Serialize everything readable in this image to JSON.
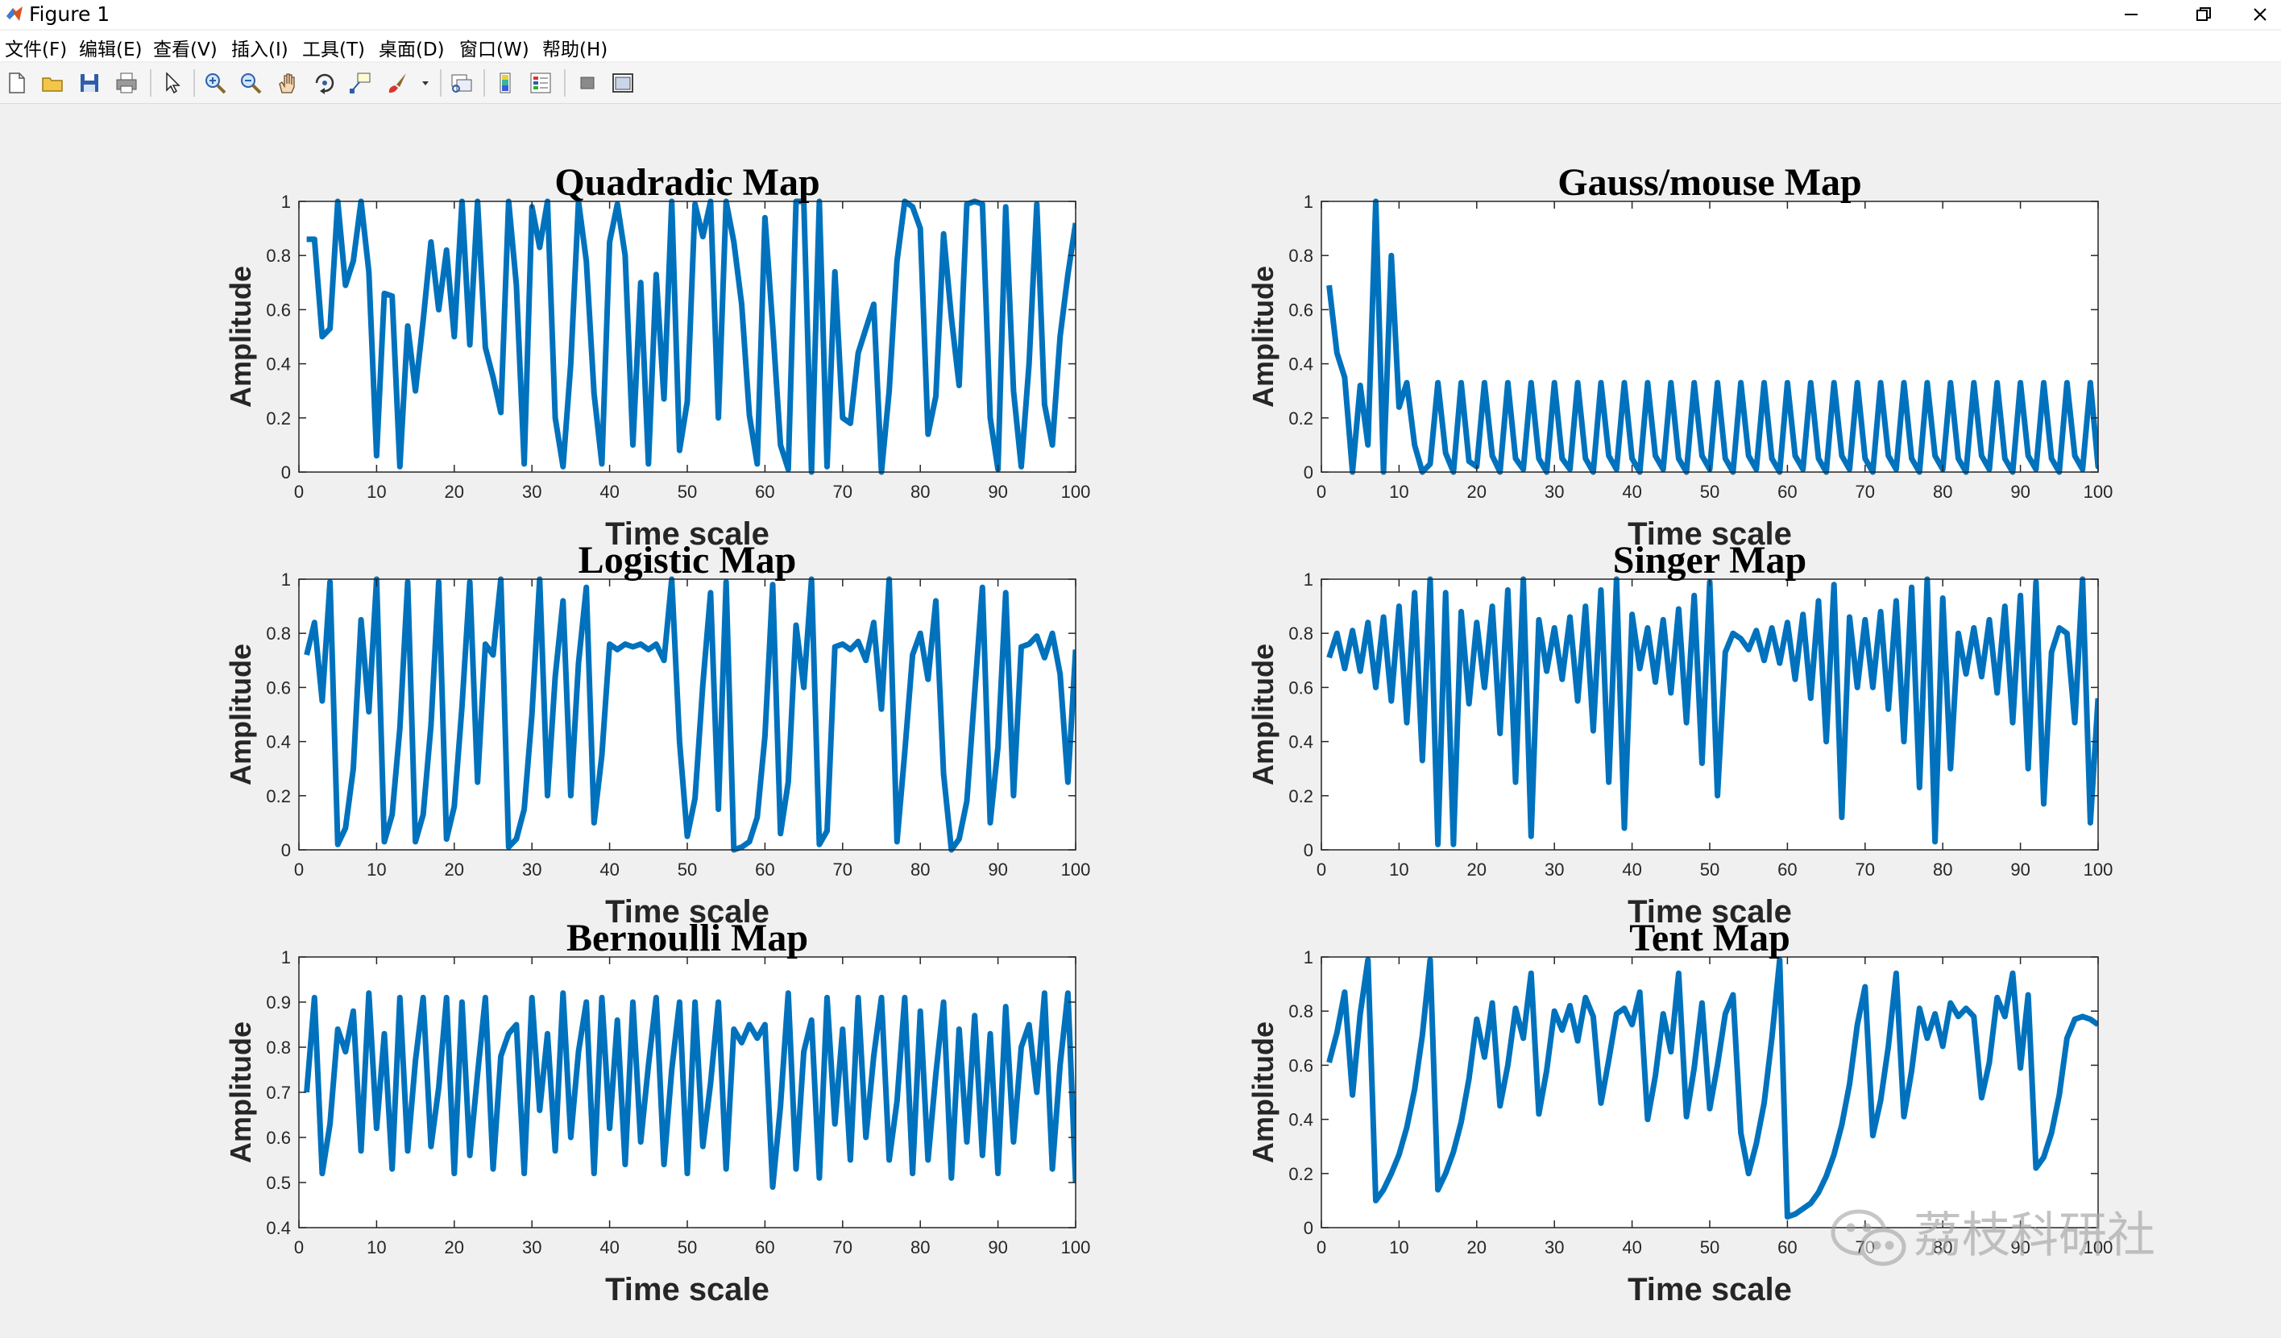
{
  "window": {
    "title": "Figure 1",
    "controls": [
      "minimize",
      "restore",
      "close"
    ]
  },
  "menu": [
    {
      "label": "文件(F)"
    },
    {
      "label": "编辑(E)"
    },
    {
      "label": "查看(V)"
    },
    {
      "label": "插入(I)"
    },
    {
      "label": "工具(T)"
    },
    {
      "label": "桌面(D)"
    },
    {
      "label": "窗口(W)"
    },
    {
      "label": "帮助(H)"
    }
  ],
  "toolbar": [
    "new-figure-icon",
    "open-file-icon",
    "save-icon",
    "print-icon",
    "select-pointer-icon",
    "zoom-in-icon",
    "zoom-out-icon",
    "pan-hand-icon",
    "rotate-3d-icon",
    "data-cursor-icon",
    "brush-icon",
    "brush-dropdown-icon",
    "link-plot-icon",
    "colorbar-icon",
    "legend-icon",
    "hide-plot-tools-icon",
    "show-plot-tools-icon"
  ],
  "colors": {
    "line": "#0072BD",
    "axes_background": "#ffffff",
    "figure_background": "#f0f0f0",
    "axis_text": "#262626"
  },
  "watermark": {
    "text": "荔枝科研社"
  },
  "chart_data": [
    {
      "type": "line",
      "title": "Quadradic Map",
      "xlabel": "Time scale",
      "ylabel": "Amplitude",
      "xlim": [
        0,
        100
      ],
      "ylim": [
        0,
        1
      ],
      "xticks": [
        "0",
        "10",
        "20",
        "30",
        "40",
        "50",
        "60",
        "70",
        "80",
        "90",
        "100"
      ],
      "yticks": [
        "0",
        "0.2",
        "0.4",
        "0.6",
        "0.8",
        "1"
      ],
      "grid": false,
      "series": [
        {
          "x_start": 1,
          "x_step": 1,
          "values": [
            0.86,
            0.86,
            0.5,
            0.53,
            1.0,
            0.69,
            0.78,
            1.0,
            0.74,
            0.06,
            0.66,
            0.65,
            0.02,
            0.54,
            0.3,
            0.56,
            0.85,
            0.6,
            0.82,
            0.5,
            1.0,
            0.47,
            1.0,
            0.46,
            0.35,
            0.22,
            1.0,
            0.69,
            0.03,
            0.98,
            0.83,
            1.0,
            0.2,
            0.02,
            0.4,
            1.0,
            0.78,
            0.29,
            0.03,
            0.85,
            0.99,
            0.8,
            0.1,
            0.7,
            0.03,
            0.73,
            0.27,
            1.0,
            0.08,
            0.26,
            0.99,
            0.87,
            1.0,
            0.2,
            1.0,
            0.85,
            0.62,
            0.21,
            0.03,
            0.94,
            0.54,
            0.1,
            0.01,
            1.0,
            1.0,
            0.0,
            1.0,
            0.02,
            0.74,
            0.2,
            0.18,
            0.44,
            0.53,
            0.62,
            0.0,
            0.3,
            0.78,
            1.0,
            0.98,
            0.9,
            0.14,
            0.28,
            0.88,
            0.57,
            0.32,
            0.99,
            1.0,
            0.99,
            0.2,
            0.01,
            0.98,
            0.3,
            0.02,
            0.4,
            0.99,
            0.25,
            0.1,
            0.5,
            0.73,
            0.92
          ]
        }
      ]
    },
    {
      "type": "line",
      "title": "Gauss/mouse Map",
      "xlabel": "Time scale",
      "ylabel": "Amplitude",
      "xlim": [
        0,
        100
      ],
      "ylim": [
        0,
        1
      ],
      "xticks": [
        "0",
        "10",
        "20",
        "30",
        "40",
        "50",
        "60",
        "70",
        "80",
        "90",
        "100"
      ],
      "yticks": [
        "0",
        "0.2",
        "0.4",
        "0.6",
        "0.8",
        "1"
      ],
      "grid": false,
      "series": [
        {
          "x_start": 1,
          "x_step": 1,
          "values": [
            0.69,
            0.44,
            0.35,
            0.0,
            0.32,
            0.1,
            1.0,
            0.0,
            0.8,
            0.24,
            0.33,
            0.1,
            0.0,
            0.03,
            0.33,
            0.07,
            0.0,
            0.33,
            0.04,
            0.02,
            0.33,
            0.06,
            0.0,
            0.33,
            0.05,
            0.01,
            0.33,
            0.05,
            0.0,
            0.33,
            0.05,
            0.01,
            0.33,
            0.05,
            0.0,
            0.33,
            0.06,
            0.01,
            0.33,
            0.05,
            0.0,
            0.33,
            0.06,
            0.01,
            0.33,
            0.05,
            0.0,
            0.33,
            0.06,
            0.01,
            0.33,
            0.05,
            0.0,
            0.33,
            0.06,
            0.01,
            0.33,
            0.05,
            0.0,
            0.33,
            0.06,
            0.01,
            0.33,
            0.05,
            0.0,
            0.33,
            0.06,
            0.01,
            0.33,
            0.05,
            0.0,
            0.33,
            0.06,
            0.01,
            0.33,
            0.05,
            0.0,
            0.33,
            0.06,
            0.01,
            0.33,
            0.05,
            0.0,
            0.33,
            0.06,
            0.01,
            0.33,
            0.05,
            0.0,
            0.33,
            0.06,
            0.01,
            0.33,
            0.05,
            0.0,
            0.33,
            0.06,
            0.01,
            0.33,
            0.02,
            0.04
          ]
        }
      ]
    },
    {
      "type": "line",
      "title": "Logistic Map",
      "xlabel": "Time scale",
      "ylabel": "Amplitude",
      "xlim": [
        0,
        100
      ],
      "ylim": [
        0,
        1
      ],
      "xticks": [
        "0",
        "10",
        "20",
        "30",
        "40",
        "50",
        "60",
        "70",
        "80",
        "90",
        "100"
      ],
      "yticks": [
        "0",
        "0.2",
        "0.4",
        "0.6",
        "0.8",
        "1"
      ],
      "grid": false,
      "series": [
        {
          "x_start": 1,
          "x_step": 1,
          "values": [
            0.72,
            0.84,
            0.55,
            0.99,
            0.02,
            0.08,
            0.3,
            0.85,
            0.51,
            1.0,
            0.03,
            0.13,
            0.45,
            0.99,
            0.03,
            0.13,
            0.46,
            0.99,
            0.04,
            0.16,
            0.53,
            0.99,
            0.25,
            0.76,
            0.72,
            1.0,
            0.01,
            0.04,
            0.15,
            0.5,
            1.0,
            0.2,
            0.64,
            0.92,
            0.2,
            0.69,
            0.97,
            0.1,
            0.35,
            0.76,
            0.74,
            0.76,
            0.75,
            0.76,
            0.74,
            0.76,
            0.7,
            1.0,
            0.4,
            0.05,
            0.19,
            0.61,
            0.95,
            0.15,
            0.99,
            0.0,
            0.01,
            0.03,
            0.12,
            0.42,
            0.98,
            0.06,
            0.25,
            0.83,
            0.6,
            1.0,
            0.02,
            0.07,
            0.75,
            0.76,
            0.74,
            0.77,
            0.7,
            0.84,
            0.52,
            1.0,
            0.03,
            0.36,
            0.72,
            0.8,
            0.63,
            0.92,
            0.28,
            0.0,
            0.04,
            0.18,
            0.58,
            0.97,
            0.1,
            0.38,
            0.95,
            0.2,
            0.75,
            0.76,
            0.79,
            0.71,
            0.8,
            0.65,
            0.25,
            0.74
          ]
        }
      ]
    },
    {
      "type": "line",
      "title": "Singer Map",
      "xlabel": "Time scale",
      "ylabel": "Amplitude",
      "xlim": [
        0,
        100
      ],
      "ylim": [
        0,
        1
      ],
      "xticks": [
        "0",
        "10",
        "20",
        "30",
        "40",
        "50",
        "60",
        "70",
        "80",
        "90",
        "100"
      ],
      "yticks": [
        "0",
        "0.2",
        "0.4",
        "0.6",
        "0.8",
        "1"
      ],
      "grid": false,
      "series": [
        {
          "x_start": 1,
          "x_step": 1,
          "values": [
            0.71,
            0.8,
            0.67,
            0.81,
            0.66,
            0.84,
            0.6,
            0.86,
            0.55,
            0.9,
            0.47,
            0.95,
            0.33,
            1.0,
            0.02,
            0.95,
            0.02,
            0.88,
            0.54,
            0.84,
            0.6,
            0.9,
            0.43,
            0.96,
            0.25,
            1.0,
            0.05,
            0.85,
            0.66,
            0.82,
            0.63,
            0.86,
            0.55,
            0.9,
            0.44,
            0.96,
            0.25,
            1.0,
            0.08,
            0.87,
            0.67,
            0.82,
            0.62,
            0.85,
            0.58,
            0.89,
            0.47,
            0.94,
            0.32,
            0.99,
            0.2,
            0.73,
            0.8,
            0.78,
            0.74,
            0.81,
            0.7,
            0.82,
            0.69,
            0.84,
            0.63,
            0.87,
            0.56,
            0.92,
            0.4,
            0.98,
            0.12,
            0.86,
            0.6,
            0.85,
            0.6,
            0.88,
            0.52,
            0.92,
            0.4,
            0.97,
            0.23,
            1.0,
            0.03,
            0.93,
            0.3,
            0.8,
            0.65,
            0.82,
            0.64,
            0.85,
            0.58,
            0.9,
            0.47,
            0.94,
            0.3,
            0.99,
            0.17,
            0.73,
            0.82,
            0.8,
            0.47,
            1.0,
            0.1,
            0.56
          ]
        }
      ]
    },
    {
      "type": "line",
      "title": "Bernoulli Map",
      "xlabel": "Time scale",
      "ylabel": "Amplitude",
      "xlim": [
        0,
        100
      ],
      "ylim": [
        0.4,
        1
      ],
      "xticks": [
        "0",
        "10",
        "20",
        "30",
        "40",
        "50",
        "60",
        "70",
        "80",
        "90",
        "100"
      ],
      "yticks": [
        "0.4",
        "0.5",
        "0.6",
        "0.7",
        "0.8",
        "0.9",
        "1"
      ],
      "grid": false,
      "series": [
        {
          "x_start": 1,
          "x_step": 1,
          "values": [
            0.7,
            0.91,
            0.52,
            0.63,
            0.84,
            0.79,
            0.88,
            0.57,
            0.92,
            0.62,
            0.83,
            0.53,
            0.91,
            0.57,
            0.77,
            0.91,
            0.58,
            0.71,
            0.91,
            0.52,
            0.9,
            0.56,
            0.74,
            0.91,
            0.53,
            0.78,
            0.83,
            0.85,
            0.52,
            0.91,
            0.66,
            0.83,
            0.57,
            0.92,
            0.6,
            0.79,
            0.9,
            0.52,
            0.91,
            0.62,
            0.86,
            0.54,
            0.9,
            0.59,
            0.76,
            0.91,
            0.54,
            0.75,
            0.9,
            0.52,
            0.9,
            0.58,
            0.72,
            0.9,
            0.53,
            0.84,
            0.81,
            0.85,
            0.82,
            0.85,
            0.49,
            0.67,
            0.92,
            0.53,
            0.79,
            0.86,
            0.51,
            0.91,
            0.63,
            0.84,
            0.55,
            0.91,
            0.6,
            0.78,
            0.91,
            0.55,
            0.68,
            0.91,
            0.52,
            0.88,
            0.55,
            0.74,
            0.9,
            0.51,
            0.84,
            0.59,
            0.87,
            0.56,
            0.83,
            0.52,
            0.89,
            0.59,
            0.8,
            0.85,
            0.7,
            0.92,
            0.53,
            0.76,
            0.92,
            0.5
          ]
        }
      ]
    },
    {
      "type": "line",
      "title": "Tent Map",
      "xlabel": "Time scale",
      "ylabel": "Amplitude",
      "xlim": [
        0,
        100
      ],
      "ylim": [
        0,
        1
      ],
      "xticks": [
        "0",
        "10",
        "20",
        "30",
        "40",
        "50",
        "60",
        "70",
        "80",
        "90",
        "100"
      ],
      "yticks": [
        "0",
        "0.2",
        "0.4",
        "0.6",
        "0.8",
        "1"
      ],
      "grid": false,
      "series": [
        {
          "x_start": 1,
          "x_step": 1,
          "values": [
            0.61,
            0.72,
            0.87,
            0.49,
            0.79,
            0.99,
            0.1,
            0.14,
            0.2,
            0.27,
            0.37,
            0.51,
            0.71,
            0.99,
            0.14,
            0.2,
            0.28,
            0.39,
            0.55,
            0.77,
            0.63,
            0.83,
            0.45,
            0.6,
            0.81,
            0.7,
            0.94,
            0.42,
            0.58,
            0.8,
            0.73,
            0.82,
            0.69,
            0.85,
            0.78,
            0.46,
            0.62,
            0.79,
            0.81,
            0.75,
            0.87,
            0.4,
            0.56,
            0.79,
            0.65,
            0.94,
            0.41,
            0.59,
            0.83,
            0.44,
            0.6,
            0.79,
            0.86,
            0.35,
            0.2,
            0.31,
            0.46,
            0.7,
            0.99,
            0.04,
            0.05,
            0.07,
            0.09,
            0.13,
            0.19,
            0.27,
            0.38,
            0.53,
            0.75,
            0.89,
            0.34,
            0.47,
            0.67,
            0.94,
            0.41,
            0.58,
            0.81,
            0.7,
            0.79,
            0.67,
            0.83,
            0.78,
            0.81,
            0.78,
            0.48,
            0.61,
            0.85,
            0.78,
            0.94,
            0.59,
            0.86,
            0.22,
            0.26,
            0.35,
            0.49,
            0.7,
            0.77,
            0.78,
            0.77,
            0.75
          ]
        }
      ]
    }
  ]
}
